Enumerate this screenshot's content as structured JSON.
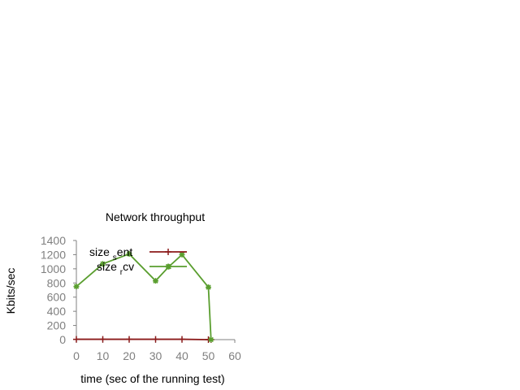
{
  "chart_data": {
    "type": "line",
    "title": "Network throughput",
    "xlabel": "time (sec of the running test)",
    "ylabel": "Kbits/sec",
    "xlim": [
      0,
      60
    ],
    "ylim": [
      0,
      1400
    ],
    "xticks": [
      "0",
      "10",
      "20",
      "30",
      "40",
      "50",
      "60"
    ],
    "yticks": [
      "0",
      "200",
      "400",
      "600",
      "800",
      "1000",
      "1200",
      "1400"
    ],
    "grid": false,
    "legend_position": "top-left",
    "series": [
      {
        "name": "size_sent",
        "legend_main": "size",
        "legend_sub": "s",
        "legend_rest": "ent",
        "color": "#8b1a1a",
        "marker": "plus",
        "x": [
          0,
          10,
          20,
          30,
          40,
          50,
          51
        ],
        "y": [
          5,
          5,
          5,
          5,
          5,
          0,
          0
        ]
      },
      {
        "name": "size_rcv",
        "legend_main": "size",
        "legend_sub": "r",
        "legend_rest": "cv",
        "color": "#5a9e2f",
        "marker": "star",
        "x": [
          0,
          10,
          20,
          30,
          35,
          40,
          50,
          51
        ],
        "y": [
          750,
          1070,
          1210,
          830,
          1030,
          1200,
          740,
          0
        ]
      }
    ]
  }
}
